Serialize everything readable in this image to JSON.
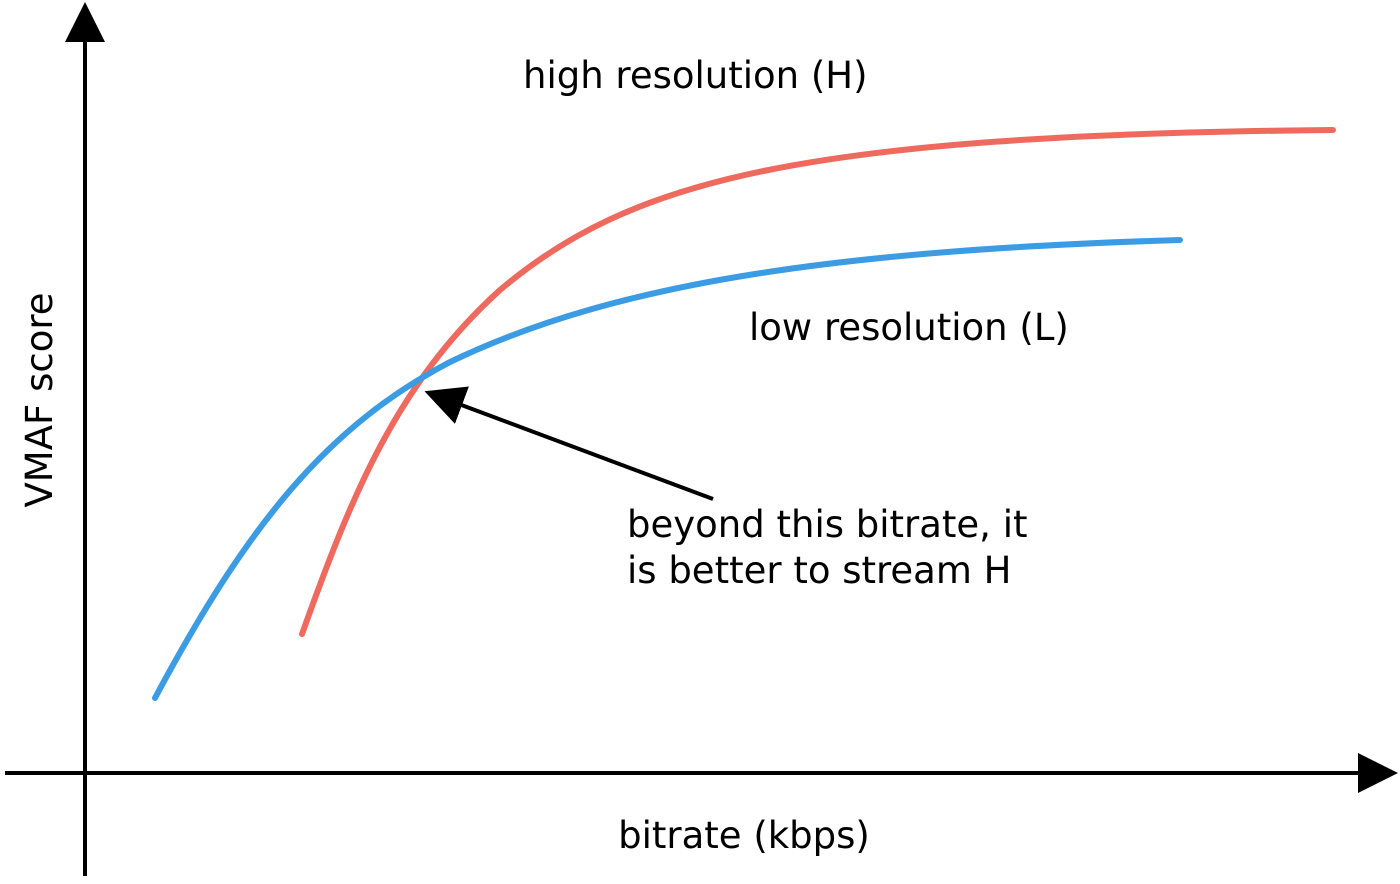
{
  "x_axis_label": "bitrate (kbps)",
  "y_axis_label": "VMAF score",
  "curves": [
    {
      "label": "high resolution (H)"
    },
    {
      "label": "low resolution (L)"
    }
  ],
  "annotation": {
    "lines": [
      "beyond this bitrate, it",
      "is better to stream H"
    ]
  }
}
